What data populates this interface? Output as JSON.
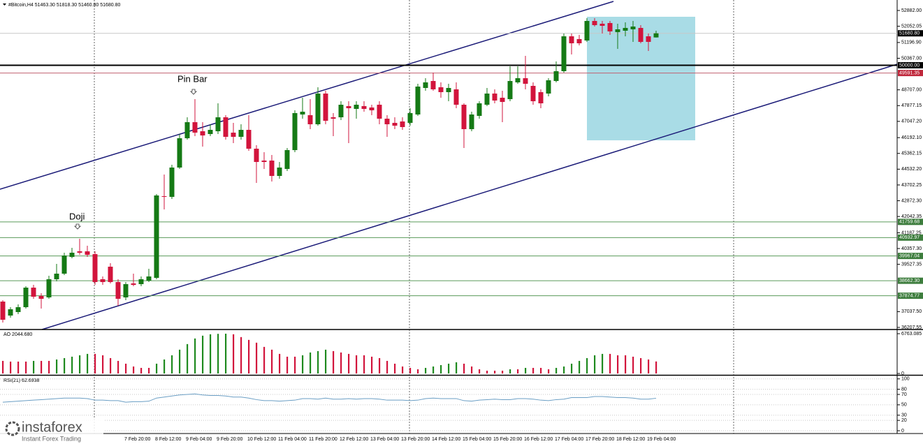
{
  "chart_data": [
    {
      "type": "candlestick",
      "header": [
        "#Bitcoin,H4",
        "51463.30",
        "51818.30",
        "51460.80",
        "51680.80"
      ],
      "annotations": [
        "Pin Bar",
        "Doji"
      ],
      "categories": [
        null,
        null,
        null,
        null,
        null,
        null,
        null,
        null,
        null,
        null,
        null,
        null,
        null,
        null,
        null,
        null,
        "7 Feb 20:00",
        null,
        null,
        null,
        "8 Feb 12:00",
        null,
        null,
        null,
        "9 Feb 04:00",
        null,
        null,
        null,
        "9 Feb 20:00",
        null,
        null,
        null,
        "10 Feb 12:00",
        null,
        null,
        null,
        "11 Feb 04:00",
        null,
        null,
        null,
        "11 Feb 20:00",
        null,
        null,
        null,
        "12 Feb 12:00",
        null,
        null,
        null,
        "13 Feb 04:00",
        null,
        null,
        null,
        "13 Feb 20:00",
        null,
        null,
        null,
        "14 Feb 12:00",
        null,
        null,
        null,
        "15 Feb 04:00",
        null,
        null,
        null,
        "15 Feb 20:00",
        null,
        null,
        null,
        "16 Feb 12:00",
        null,
        null,
        null,
        "17 Feb 04:00",
        null,
        null,
        null,
        "17 Feb 20:00",
        null,
        null,
        null,
        "18 Feb 12:00",
        null,
        null,
        null,
        "19 Feb 04:00",
        null
      ],
      "open": [
        37566,
        36831,
        37015,
        37272,
        38300,
        37859,
        37786,
        38741,
        39035,
        39916,
        40210,
        40210,
        40063,
        38741,
        39402,
        38594,
        37786,
        38521,
        38484,
        38668,
        38814,
        43112,
        43075,
        44618,
        46160,
        47005,
        46528,
        46381,
        46528,
        47262,
        46454,
        46234,
        46601,
        45610,
        44985,
        44985,
        44177,
        44544,
        45536,
        47409,
        47373,
        46895,
        48511,
        47262,
        47262,
        47850,
        47703,
        47850,
        47777,
        47923,
        47189,
        46969,
        47042,
        46969,
        47409,
        48805,
        49172,
        48842,
        48585,
        48732,
        47923,
        46638,
        47336,
        47923,
        48511,
        48291,
        48217,
        49099,
        49319,
        48915,
        48585,
        48511,
        49172,
        49687,
        51523,
        51376,
        51303,
        52331,
        52184,
        52221,
        51743,
        51817,
        51890,
        51964,
        51523,
        51463.3
      ],
      "high": [
        37639,
        37272,
        37419,
        38374,
        38447,
        38006,
        38925,
        39549,
        40137,
        40394,
        40871,
        40504,
        40210,
        38888,
        39586,
        38741,
        38594,
        39035,
        38888,
        39292,
        43222,
        44250,
        44765,
        46381,
        47262,
        48217,
        47005,
        46895,
        47997,
        47373,
        46969,
        46895,
        47373,
        45793,
        45426,
        45279,
        44912,
        45646,
        47630,
        48291,
        48217,
        48842,
        48658,
        47483,
        48107,
        48107,
        48107,
        48107,
        47923,
        48107,
        47373,
        47262,
        47262,
        47740,
        49025,
        49319,
        49613,
        49099,
        49025,
        49099,
        47997,
        47556,
        48107,
        48805,
        48732,
        48658,
        49944,
        49944,
        50495,
        49099,
        48732,
        49319,
        50201,
        51670,
        51670,
        51596,
        52478,
        52478,
        52331,
        52331,
        52184,
        52258,
        52331,
        52111,
        51670,
        51818.3
      ],
      "low": [
        36464,
        36721,
        36904,
        37198,
        37713,
        37198,
        37713,
        38631,
        38961,
        39843,
        40027,
        39916,
        38447,
        38447,
        38521,
        37345,
        37639,
        38374,
        38374,
        38594,
        38741,
        42414,
        42965,
        44544,
        46087,
        46271,
        45720,
        46271,
        46381,
        46087,
        45903,
        46087,
        45499,
        43810,
        44544,
        43883,
        44030,
        44434,
        45426,
        47189,
        46638,
        46822,
        46895,
        46271,
        47115,
        45903,
        47189,
        47556,
        47373,
        46895,
        46234,
        46638,
        46601,
        46822,
        47336,
        48658,
        48658,
        48291,
        48107,
        47740,
        45646,
        46528,
        47189,
        47850,
        47997,
        47005,
        48107,
        49025,
        48732,
        47923,
        47740,
        48364,
        49099,
        49613,
        50568,
        51046,
        51229,
        52037,
        51670,
        51596,
        50862,
        51523,
        51229,
        51156,
        50752,
        51460.8
      ],
      "close": [
        36611,
        37162,
        37272,
        38300,
        37823,
        37713,
        38741,
        39035,
        39990,
        40137,
        40137,
        40027,
        38594,
        38594,
        38594,
        37713,
        38484,
        38447,
        38741,
        38888,
        43149,
        43075,
        44618,
        46160,
        47005,
        46454,
        46307,
        46601,
        47262,
        46234,
        46234,
        46601,
        45610,
        44912,
        44912,
        44177,
        44618,
        45536,
        47483,
        47556,
        46895,
        48511,
        47079,
        47189,
        47923,
        47740,
        47923,
        47703,
        47630,
        47189,
        46895,
        46822,
        46748,
        47483,
        48878,
        49099,
        48732,
        48585,
        48805,
        47923,
        46638,
        47409,
        47997,
        48511,
        48144,
        48070,
        49172,
        49319,
        49025,
        48107,
        47997,
        49209,
        49687,
        51523,
        51156,
        51156,
        52331,
        52111,
        52074,
        51780,
        51890,
        51964,
        52037,
        51229,
        51229,
        51680.8
      ],
      "up_color": "#157a15",
      "down_color": "#d2143c",
      "ylim": [
        36097,
        53433
      ],
      "yticks": [
        {
          "value": 52882,
          "label": "52882.00"
        },
        {
          "value": 52052.05,
          "label": "52052.05"
        },
        {
          "value": 51196.9,
          "label": "51196.90"
        },
        {
          "value": 50367,
          "label": "50367.00"
        },
        {
          "value": 48707,
          "label": "48707.00"
        },
        {
          "value": 47877.15,
          "label": "47877.15"
        },
        {
          "value": 47047.2,
          "label": "47047.20"
        },
        {
          "value": 46192.1,
          "label": "46192.10"
        },
        {
          "value": 45362.15,
          "label": "45362.15"
        },
        {
          "value": 44532.2,
          "label": "44532.20"
        },
        {
          "value": 43702.25,
          "label": "43702.25"
        },
        {
          "value": 42872.3,
          "label": "42872.30"
        },
        {
          "value": 42042.35,
          "label": "42042.35"
        },
        {
          "value": 41187.25,
          "label": "41187.25"
        },
        {
          "value": 40357.3,
          "label": "40357.30"
        },
        {
          "value": 39527.35,
          "label": "39527.35"
        },
        {
          "value": 37037.5,
          "label": "37037.50"
        },
        {
          "value": 36207.55,
          "label": "36207.55"
        }
      ],
      "levels": [
        {
          "value": 51680.8,
          "label": "51680.80",
          "color": "#c8c8c8",
          "box": "#000000"
        },
        {
          "value": 50000,
          "label": "50000.00",
          "color": "#000000",
          "box": "#000000",
          "emphasis": true
        },
        {
          "value": 49591.35,
          "label": "49591.35",
          "color": "#c06070",
          "box": "#c0283c"
        },
        {
          "value": 41759.68,
          "label": "41759.68",
          "color": "#5a9a5a",
          "box": "#3d7d3d"
        },
        {
          "value": 40932.97,
          "label": "40932.97",
          "color": "#5a9a5a",
          "box": "#3d7d3d"
        },
        {
          "value": 39967.04,
          "label": "39967.04",
          "color": "#5a9a5a",
          "box": "#3d7d3d"
        },
        {
          "value": 38662.3,
          "label": "38662.30",
          "color": "#5a9a5a",
          "box": "#3d7d3d"
        },
        {
          "value": 37874.77,
          "label": "37874.77",
          "color": "#5a9a5a",
          "box": "#3d7d3d"
        }
      ]
    },
    {
      "type": "bar",
      "title": "AO 2044.680",
      "values": [
        2142,
        2023,
        2023,
        2023,
        2142,
        2142,
        2142,
        2380,
        2618,
        2856,
        3094,
        3332,
        3332,
        3094,
        2618,
        2142,
        1666,
        1190,
        952,
        952,
        1666,
        2380,
        3094,
        4046,
        4998,
        5950,
        6426,
        6664,
        6740,
        6763,
        6664,
        6188,
        5712,
        5236,
        4522,
        4046,
        3332,
        2856,
        2856,
        3094,
        3570,
        3808,
        4046,
        3808,
        3570,
        3332,
        3094,
        3094,
        2856,
        2618,
        2142,
        1666,
        1190,
        952,
        714,
        952,
        1190,
        1428,
        1666,
        1904,
        1666,
        1190,
        714,
        476,
        476,
        476,
        714,
        714,
        952,
        952,
        952,
        714,
        952,
        1190,
        1666,
        2142,
        2618,
        3094,
        3332,
        3332,
        3094,
        3094,
        2856,
        2618,
        2380,
        2044.68
      ],
      "up_color": "#1f8a1f",
      "down_color": "#d2143c",
      "ylim": [
        -237,
        7356
      ],
      "yticks": [
        {
          "value": 6763.085,
          "label": "6763.085"
        },
        0
      ]
    },
    {
      "type": "line",
      "title": "RSI(21) 62.6938",
      "values": [
        55,
        56,
        57,
        58,
        59,
        60,
        61,
        62,
        63,
        63,
        63,
        62,
        59,
        59,
        58,
        58,
        55,
        56,
        56,
        57,
        63,
        65,
        67,
        69,
        70,
        71,
        69,
        68,
        68,
        67,
        65,
        65,
        63,
        60,
        58,
        58,
        57,
        58,
        59,
        62,
        62,
        61,
        63,
        61,
        61,
        62,
        61,
        62,
        62,
        61,
        59,
        59,
        59,
        58,
        59,
        62,
        63,
        62,
        62,
        62,
        58,
        57,
        59,
        60,
        61,
        60,
        60,
        62,
        62,
        61,
        59,
        58,
        60,
        61,
        64,
        64,
        64,
        66,
        66,
        65,
        64,
        64,
        63,
        61,
        61,
        62.6938
      ],
      "color": "#6a9ec4",
      "grid": true,
      "ylim": [
        -4,
        105
      ],
      "yticks": [
        100,
        80,
        70,
        50,
        30,
        20,
        0
      ]
    }
  ],
  "logo": {
    "name": "instaforex",
    "tagline": "Instant Forex Trading"
  }
}
